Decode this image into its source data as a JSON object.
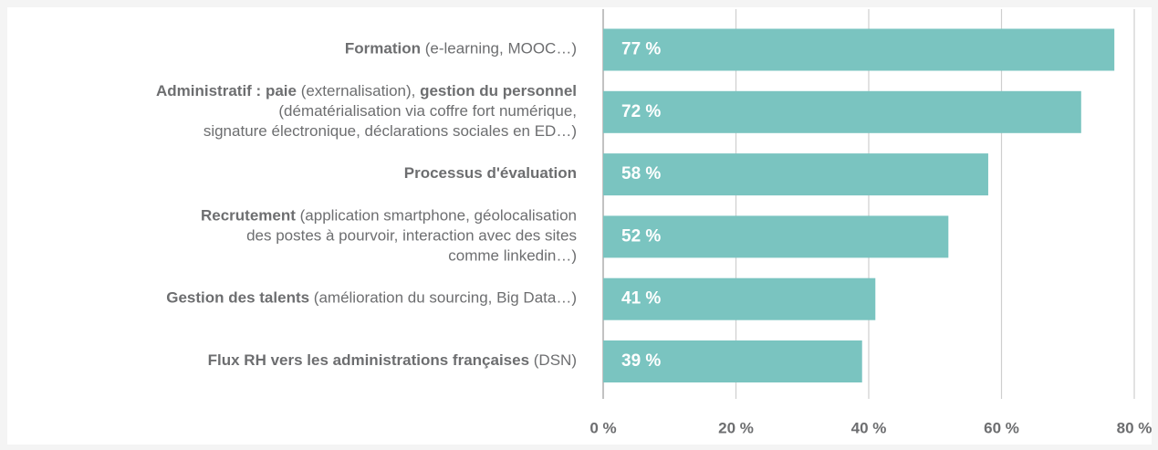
{
  "chart_data": {
    "type": "hbar",
    "categories": [
      [
        [
          {
            "text": "Formation",
            "bold": true
          },
          {
            "text": " (e-learning, MOOC…)",
            "bold": false
          }
        ]
      ],
      [
        [
          {
            "text": "Administratif : paie",
            "bold": true
          },
          {
            "text": " (externalisation), ",
            "bold": false
          },
          {
            "text": "gestion du personnel",
            "bold": true
          }
        ],
        [
          {
            "text": "(dématérialisation via coffre fort numérique,",
            "bold": false
          }
        ],
        [
          {
            "text": "signature électronique, déclarations sociales en ED…)",
            "bold": false
          }
        ]
      ],
      [
        [
          {
            "text": "Processus d'évaluation",
            "bold": true
          }
        ]
      ],
      [
        [
          {
            "text": "Recrutement",
            "bold": true
          },
          {
            "text": " (application smartphone, géolocalisation",
            "bold": false
          }
        ],
        [
          {
            "text": "des postes à pourvoir, interaction avec des sites",
            "bold": false
          }
        ],
        [
          {
            "text": "comme linkedin…)",
            "bold": false
          }
        ]
      ],
      [
        [
          {
            "text": "Gestion des talents",
            "bold": true
          },
          {
            "text": " (amélioration du sourcing, Big Data…)",
            "bold": false
          }
        ]
      ],
      [
        [
          {
            "text": "Flux RH vers les administrations françaises",
            "bold": true
          },
          {
            "text": " (DSN)",
            "bold": false
          }
        ]
      ]
    ],
    "values": [
      77,
      72,
      58,
      52,
      41,
      39
    ],
    "value_labels": [
      "77 %",
      "72 %",
      "58 %",
      "52 %",
      "41 %",
      "39 %"
    ],
    "color": "#7ac4c0",
    "xlim": [
      0,
      80
    ],
    "xticks": [
      {
        "value": 0,
        "label": "0 %"
      },
      {
        "value": 20,
        "label": "20 %"
      },
      {
        "value": 40,
        "label": "40 %"
      },
      {
        "value": 60,
        "label": "60 %"
      },
      {
        "value": 80,
        "label": "80 %"
      }
    ],
    "grid": true
  }
}
